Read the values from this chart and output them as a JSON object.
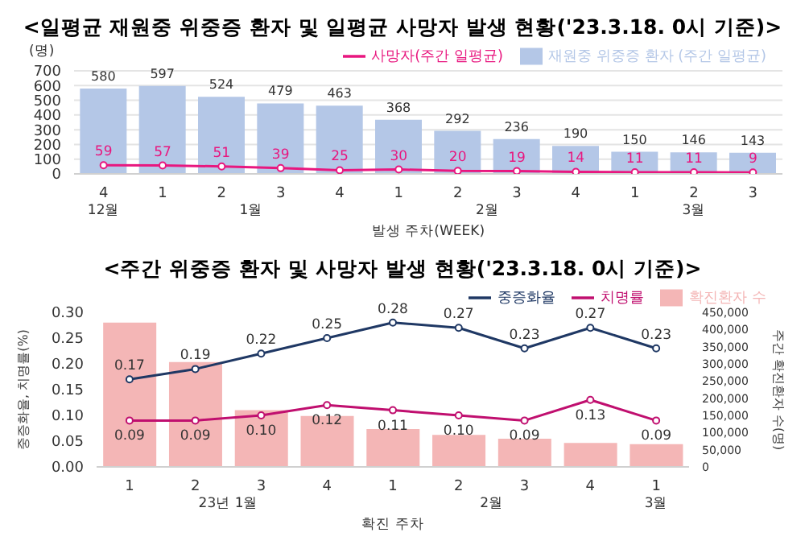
{
  "chart_data": [
    {
      "type": "bar",
      "title": "<일평균 재원중 위중증 환자 및 일평균 사망자 발생 현황('23.3.18. 0시 기준)>",
      "ylabel": "(명)",
      "xlabel": "발생 주차(WEEK)",
      "categories": [
        "4",
        "1",
        "2",
        "3",
        "4",
        "1",
        "2",
        "3",
        "4",
        "1",
        "2",
        "3"
      ],
      "series": [
        {
          "name": "재원중 위중증 환자 (주간 일평균)",
          "color": "#b4c7e7",
          "values": [
            580,
            597,
            524,
            479,
            463,
            368,
            292,
            236,
            190,
            150,
            146,
            143
          ]
        },
        {
          "name": "사망자(주간 일평균)",
          "type": "line",
          "color": "#e8177f",
          "values": [
            59,
            57,
            51,
            39,
            25,
            30,
            20,
            19,
            14,
            11,
            11,
            9
          ]
        }
      ],
      "annotations": [
        "12월",
        "1월",
        "2월",
        "3월"
      ],
      "ylim": [
        0,
        700
      ],
      "yticks": [
        0,
        100,
        200,
        300,
        400,
        500,
        600,
        700
      ],
      "grid": "y",
      "legend": "top right",
      "marker": "circle",
      "data_labels": true
    },
    {
      "type": "bar",
      "title": "<주간 위중증 환자 및 사망자 발생 현황('23.3.18. 0시 기준)>",
      "ylabel": "중증화율, 치명률(%)",
      "y2label": "주간 확진환자 수(명)",
      "xlabel": "확진 주차",
      "categories": [
        "1",
        "2",
        "3",
        "4",
        "1",
        "2",
        "3",
        "4",
        "1"
      ],
      "series": [
        {
          "name": "확진환자 수",
          "axis": "y2",
          "color": "#f4b6b6",
          "values": [
            420000,
            305000,
            165000,
            148000,
            110000,
            93000,
            82000,
            70000,
            66000
          ]
        },
        {
          "name": "중증화율",
          "type": "line",
          "color": "#1f3864",
          "values": [
            0.17,
            0.19,
            0.22,
            0.25,
            0.28,
            0.27,
            0.23,
            0.27,
            0.23
          ],
          "value_labels": [
            "0.17",
            "0.19",
            "0.22",
            "0.25",
            "0.28",
            "0.27",
            "0.23",
            "0.27",
            "0.23"
          ]
        },
        {
          "name": "치명률",
          "type": "line",
          "color": "#c00f6f",
          "values": [
            0.09,
            0.09,
            0.1,
            0.12,
            0.11,
            0.1,
            0.09,
            0.13,
            0.09
          ],
          "value_labels": [
            "0.09",
            "0.09",
            "0.10",
            "0.12",
            "0.11",
            "0.10",
            "0.09",
            "0.13",
            "0.09"
          ]
        }
      ],
      "annotations": [
        "23년 1월",
        "2월",
        "3월"
      ],
      "ylim": [
        0,
        0.3
      ],
      "yticks": [
        {
          "value": 0,
          "label": "0.00"
        },
        {
          "value": 0.05,
          "label": "0.05"
        },
        {
          "value": 0.1,
          "label": "0.10"
        },
        {
          "value": 0.15,
          "label": "0.15"
        },
        {
          "value": 0.2,
          "label": "0.20"
        },
        {
          "value": 0.25,
          "label": "0.25"
        },
        {
          "value": 0.3,
          "label": "0.30"
        }
      ],
      "y2lim": [
        0,
        450000
      ],
      "y2ticks": [
        0,
        {
          "value": 50000,
          "label": "50,000"
        },
        {
          "value": 100000,
          "label": "100,000"
        },
        {
          "value": 150000,
          "label": "150,000"
        },
        {
          "value": 200000,
          "label": "200,000"
        },
        {
          "value": 250000,
          "label": "250,000"
        },
        {
          "value": 300000,
          "label": "300,000"
        },
        {
          "value": 350000,
          "label": "350,000"
        },
        {
          "value": 400000,
          "label": "400,000"
        },
        {
          "value": 450000,
          "label": "450,000"
        }
      ],
      "legend": "top right",
      "marker": "circle"
    }
  ]
}
